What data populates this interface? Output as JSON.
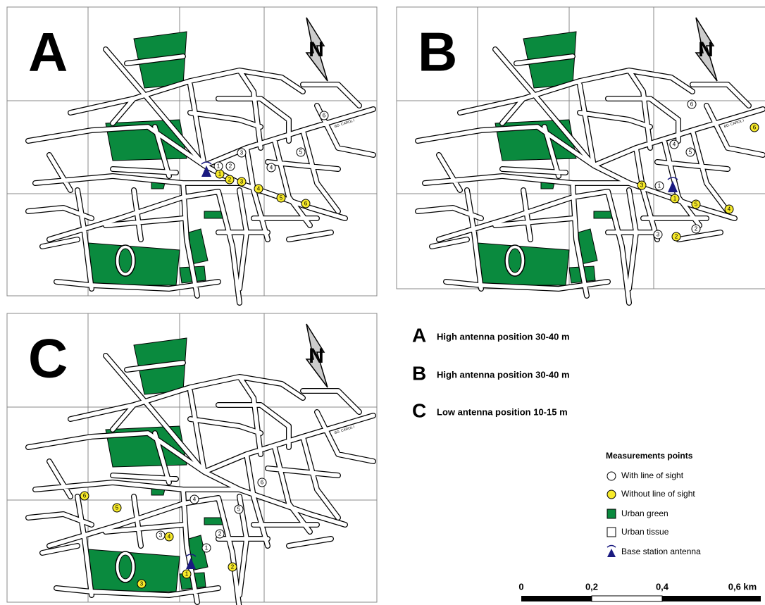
{
  "panels": [
    {
      "letter": "A",
      "street": "BD. CAROL I",
      "north": "N",
      "points": [
        {
          "label": "1",
          "type": "nlos"
        },
        {
          "label": "1",
          "type": "los"
        },
        {
          "label": "2",
          "type": "nlos"
        },
        {
          "label": "2",
          "type": "los"
        },
        {
          "label": "3",
          "type": "nlos"
        },
        {
          "label": "3",
          "type": "los"
        },
        {
          "label": "4",
          "type": "nlos"
        },
        {
          "label": "4",
          "type": "los"
        },
        {
          "label": "5",
          "type": "nlos"
        },
        {
          "label": "5",
          "type": "los"
        },
        {
          "label": "6",
          "type": "nlos"
        },
        {
          "label": "6",
          "type": "los"
        }
      ]
    },
    {
      "letter": "B",
      "street": "BD. CAROL I",
      "north": "N",
      "points": [
        {
          "label": "1",
          "type": "nlos"
        },
        {
          "label": "1",
          "type": "los"
        },
        {
          "label": "2",
          "type": "nlos"
        },
        {
          "label": "2",
          "type": "los"
        },
        {
          "label": "3",
          "type": "nlos"
        },
        {
          "label": "3",
          "type": "los"
        },
        {
          "label": "4",
          "type": "nlos"
        },
        {
          "label": "4",
          "type": "los"
        },
        {
          "label": "5",
          "type": "nlos"
        },
        {
          "label": "5",
          "type": "los"
        },
        {
          "label": "6",
          "type": "nlos"
        },
        {
          "label": "6",
          "type": "los"
        }
      ]
    },
    {
      "letter": "C",
      "street": "BD. CAROL I",
      "north": "N",
      "points": [
        {
          "label": "1",
          "type": "nlos"
        },
        {
          "label": "1",
          "type": "los"
        },
        {
          "label": "2",
          "type": "nlos"
        },
        {
          "label": "2",
          "type": "los"
        },
        {
          "label": "3",
          "type": "nlos"
        },
        {
          "label": "3",
          "type": "los"
        },
        {
          "label": "4",
          "type": "nlos"
        },
        {
          "label": "4",
          "type": "los"
        },
        {
          "label": "5",
          "type": "nlos"
        },
        {
          "label": "5",
          "type": "los"
        },
        {
          "label": "6",
          "type": "nlos"
        },
        {
          "label": "6",
          "type": "los"
        }
      ]
    }
  ],
  "scenarios": [
    {
      "letter": "A",
      "text": "High antenna position 30-40 m"
    },
    {
      "letter": "B",
      "text": "High antenna position 30-40 m"
    },
    {
      "letter": "C",
      "text": "Low antenna position 10-15 m"
    }
  ],
  "legend": {
    "title": "Measurements points",
    "items": [
      "With line of sight",
      "Without line of sight",
      "Urban green",
      "Urban tissue",
      "Base station antenna"
    ]
  },
  "scale": {
    "labels": [
      "0",
      "0,2",
      "0,4",
      "0,6 km"
    ]
  }
}
